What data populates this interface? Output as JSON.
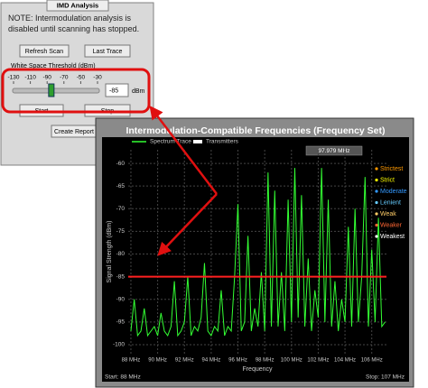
{
  "window": {
    "title": "IMD Analysis",
    "note": "NOTE: Intermodulation analysis is disabled until scanning has stopped.",
    "refresh_button": "Refresh Scan",
    "last_trace_button": "Last Trace",
    "threshold_label": "White Space Threshold (dBm)",
    "slider_ticks": [
      -130,
      -110,
      -90,
      -70,
      -50,
      -30
    ],
    "unit": "dBm",
    "start_button": "Start",
    "stop_button": "Stop",
    "report_button": "Create Report"
  },
  "chart_data": {
    "type": "line",
    "title": "Intermodulation-Compatible Frequencies (Frequency Set)",
    "transmitters_label": "Transmitters",
    "readout": "97.979 MHz",
    "xlabel": "Frequency",
    "ylabel": "Signal Strength (dBm)",
    "start_label": "Start: 88 MHz",
    "stop_label": "Stop: 107 MHz",
    "threshold": -85,
    "threshold_color": "#ff2020",
    "x": [
      88,
      88.25,
      88.5,
      88.75,
      89,
      89.25,
      89.5,
      89.75,
      90,
      90.25,
      90.5,
      90.75,
      91,
      91.25,
      91.5,
      91.75,
      92,
      92.25,
      92.5,
      92.75,
      93,
      93.25,
      93.5,
      93.75,
      94,
      94.25,
      94.5,
      94.75,
      95,
      95.25,
      95.5,
      95.75,
      96,
      96.25,
      96.5,
      96.75,
      97,
      97.25,
      97.5,
      97.75,
      98,
      98.25,
      98.5,
      98.75,
      99,
      99.25,
      99.5,
      99.75,
      100,
      100.25,
      100.5,
      100.75,
      101,
      101.25,
      101.5,
      101.75,
      102,
      102.25,
      102.5,
      102.75,
      103,
      103.25,
      103.5,
      103.75,
      104,
      104.25,
      104.5,
      104.75,
      105,
      105.25,
      105.5,
      105.75,
      106,
      106.25,
      106.5,
      106.75,
      107
    ],
    "series": [
      {
        "name": "Spectrum Trace",
        "color": "#33ff33",
        "values": [
          -97,
          -90,
          -98,
          -97,
          -92,
          -98,
          -97,
          -96,
          -98,
          -93,
          -97,
          -98,
          -96,
          -86,
          -98,
          -97,
          -95,
          -85,
          -98,
          -96,
          -97,
          -94,
          -82,
          -97,
          -98,
          -96,
          -97,
          -88,
          -98,
          -96,
          -97,
          -85,
          -69,
          -97,
          -95,
          -76,
          -97,
          -92,
          -96,
          -84,
          -97,
          -62,
          -96,
          -66,
          -96,
          -84,
          -97,
          -68,
          -95,
          -61,
          -94,
          -67,
          -96,
          -81,
          -97,
          -88,
          -94,
          -61,
          -95,
          -68,
          -96,
          -86,
          -97,
          -90,
          -95,
          -74,
          -96,
          -70,
          -95,
          -85,
          -63,
          -96,
          -79,
          -95,
          -72,
          -96,
          -95
        ]
      }
    ],
    "xlim": [
      87.8,
      107.1
    ],
    "ylim": [
      -57,
      -102
    ],
    "xticks": [
      {
        "value": 88,
        "label": "88 MHz"
      },
      {
        "value": 90,
        "label": "90 MHz"
      },
      {
        "value": 92,
        "label": "92 MHz"
      },
      {
        "value": 94,
        "label": "94 MHz"
      },
      {
        "value": 96,
        "label": "96 MHz"
      },
      {
        "value": 98,
        "label": "98 MHz"
      },
      {
        "value": 100,
        "label": "100 MHz"
      },
      {
        "value": 102,
        "label": "102 MHz"
      },
      {
        "value": 104,
        "label": "104 MHz"
      },
      {
        "value": 106,
        "label": "106 MHz"
      }
    ],
    "yticks": [
      -60,
      -65,
      -70,
      -75,
      -80,
      -85,
      -90,
      -95,
      -100
    ],
    "grid": true,
    "strength_legend": [
      {
        "label": "Strictest",
        "color": "#ff9900"
      },
      {
        "label": "Strict",
        "color": "#ffff00"
      },
      {
        "label": "Moderate",
        "color": "#3399ff"
      },
      {
        "label": "Lenient",
        "color": "#66ccff"
      },
      {
        "label": "Weak",
        "color": "#ffcc66"
      },
      {
        "label": "Weaker",
        "color": "#ff6633"
      },
      {
        "label": "Weakest",
        "color": "#ffffff"
      }
    ]
  }
}
